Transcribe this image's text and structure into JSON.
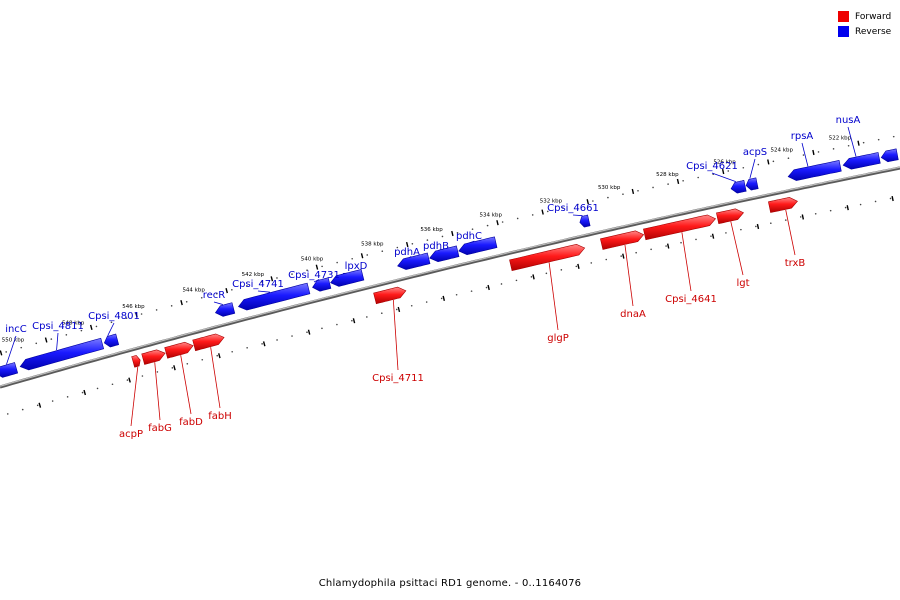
{
  "caption": "Chlamydophila psittaci RD1 genome. - 0..1164076",
  "legend": [
    {
      "label": "Forward",
      "color": "#ee0000"
    },
    {
      "label": "Reverse",
      "color": "#0000ee"
    }
  ],
  "colors": {
    "forward": "#ee0000",
    "forward_light": "#ff7a7a",
    "forward_dark": "#a80000",
    "reverse": "#0000ee",
    "reverse_light": "#6d6dff",
    "reverse_dark": "#0000a0",
    "backbone": "#888888",
    "forward_label": "#cc0000",
    "reverse_label": "#0000cc"
  },
  "scale_ticks": [
    "522 kbp",
    "524 kbp",
    "526 kbp",
    "528 kbp",
    "530 kbp",
    "532 kbp",
    "534 kbp",
    "536 kbp",
    "538 kbp",
    "540 kbp",
    "542 kbp",
    "544 kbp",
    "546 kbp",
    "548 kbp",
    "550 kbp"
  ],
  "reverse_genes": [
    {
      "label": "incC"
    },
    {
      "label": "Cpsi_4811"
    },
    {
      "label": "Cpsi_4801"
    },
    {
      "label": "recR"
    },
    {
      "label": "Cpsi_4741"
    },
    {
      "label": "Cpsi_4731"
    },
    {
      "label": "lpxD"
    },
    {
      "label": "pdhA"
    },
    {
      "label": "pdhB"
    },
    {
      "label": "pdhC"
    },
    {
      "label": "Cpsi_4661"
    },
    {
      "label": "Cpsi_4621"
    },
    {
      "label": "acpS"
    },
    {
      "label": "rpsA"
    },
    {
      "label": "nusA"
    }
  ],
  "forward_genes": [
    {
      "label": "acpP"
    },
    {
      "label": "fabG"
    },
    {
      "label": "fabD"
    },
    {
      "label": "fabH"
    },
    {
      "label": "Cpsi_4711"
    },
    {
      "label": "glgP"
    },
    {
      "label": "dnaA"
    },
    {
      "label": "Cpsi_4641"
    },
    {
      "label": "lgt"
    },
    {
      "label": "trxB"
    }
  ]
}
